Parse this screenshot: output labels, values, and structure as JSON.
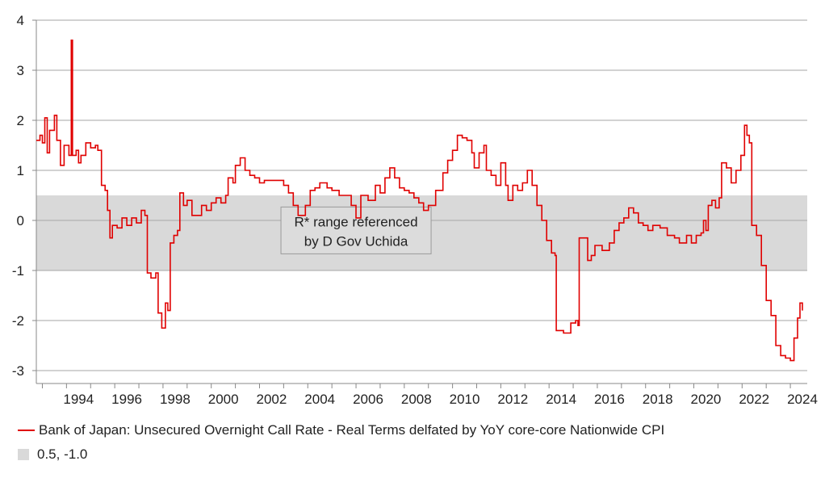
{
  "chart_data": {
    "type": "line",
    "ylim": [
      -3.25,
      4.0
    ],
    "yticks": [
      4,
      3,
      2,
      1,
      0,
      -1,
      -2,
      -3
    ],
    "xlim": [
      1992.75,
      2024.7
    ],
    "xticks": [
      "1994",
      "1996",
      "1998",
      "2000",
      "2002",
      "2004",
      "2006",
      "2008",
      "2010",
      "2012",
      "2014",
      "2016",
      "2018",
      "2020",
      "2022",
      "2024"
    ],
    "grid": true,
    "band": {
      "upper": 0.5,
      "lower": -1.0,
      "color": "#d9d9d9"
    },
    "annotation": {
      "line1": "R* range referenced",
      "line2": "by D Gov Uchida",
      "x": 2006.0,
      "y": -0.2
    },
    "legend": {
      "series_label": "Bank of Japan: Unsecured Overnight Call Rate - Real Terms delfated by YoY core-core Nationwide CPI",
      "band_label": "0.5, -1.0"
    },
    "series": [
      {
        "name": "Bank of Japan: Unsecured Overnight Call Rate - Real Terms delfated by YoY core-core Nationwide CPI",
        "color": "#e00000",
        "points": [
          [
            1992.75,
            1.6
          ],
          [
            1992.9,
            1.7
          ],
          [
            1993.0,
            1.55
          ],
          [
            1993.1,
            2.05
          ],
          [
            1993.2,
            1.35
          ],
          [
            1993.3,
            1.8
          ],
          [
            1993.5,
            2.1
          ],
          [
            1993.6,
            1.6
          ],
          [
            1993.75,
            1.1
          ],
          [
            1993.9,
            1.5
          ],
          [
            1994.1,
            1.3
          ],
          [
            1994.2,
            3.6
          ],
          [
            1994.25,
            1.3
          ],
          [
            1994.4,
            1.4
          ],
          [
            1994.5,
            1.15
          ],
          [
            1994.6,
            1.3
          ],
          [
            1994.8,
            1.55
          ],
          [
            1995.0,
            1.45
          ],
          [
            1995.2,
            1.5
          ],
          [
            1995.3,
            1.4
          ],
          [
            1995.45,
            0.7
          ],
          [
            1995.6,
            0.6
          ],
          [
            1995.7,
            0.2
          ],
          [
            1995.8,
            -0.35
          ],
          [
            1995.9,
            -0.1
          ],
          [
            1996.1,
            -0.15
          ],
          [
            1996.3,
            0.05
          ],
          [
            1996.5,
            -0.1
          ],
          [
            1996.7,
            0.05
          ],
          [
            1996.9,
            -0.05
          ],
          [
            1997.1,
            0.2
          ],
          [
            1997.25,
            0.1
          ],
          [
            1997.35,
            -1.05
          ],
          [
            1997.5,
            -1.15
          ],
          [
            1997.7,
            -1.05
          ],
          [
            1997.8,
            -1.85
          ],
          [
            1997.95,
            -2.15
          ],
          [
            1998.1,
            -1.65
          ],
          [
            1998.2,
            -1.8
          ],
          [
            1998.3,
            -0.45
          ],
          [
            1998.45,
            -0.3
          ],
          [
            1998.6,
            -0.2
          ],
          [
            1998.7,
            0.55
          ],
          [
            1998.85,
            0.3
          ],
          [
            1999.0,
            0.4
          ],
          [
            1999.2,
            0.1
          ],
          [
            1999.4,
            0.1
          ],
          [
            1999.6,
            0.3
          ],
          [
            1999.8,
            0.2
          ],
          [
            2000.0,
            0.35
          ],
          [
            2000.2,
            0.45
          ],
          [
            2000.4,
            0.35
          ],
          [
            2000.6,
            0.5
          ],
          [
            2000.7,
            0.85
          ],
          [
            2000.9,
            0.75
          ],
          [
            2001.0,
            1.1
          ],
          [
            2001.2,
            1.25
          ],
          [
            2001.4,
            1.0
          ],
          [
            2001.6,
            0.9
          ],
          [
            2001.8,
            0.85
          ],
          [
            2002.0,
            0.75
          ],
          [
            2002.2,
            0.8
          ],
          [
            2002.5,
            0.8
          ],
          [
            2002.8,
            0.8
          ],
          [
            2003.0,
            0.7
          ],
          [
            2003.2,
            0.55
          ],
          [
            2003.4,
            0.3
          ],
          [
            2003.6,
            0.1
          ],
          [
            2003.9,
            0.3
          ],
          [
            2004.1,
            0.6
          ],
          [
            2004.3,
            0.65
          ],
          [
            2004.5,
            0.75
          ],
          [
            2004.8,
            0.65
          ],
          [
            2005.0,
            0.6
          ],
          [
            2005.3,
            0.5
          ],
          [
            2005.6,
            0.5
          ],
          [
            2005.8,
            0.3
          ],
          [
            2006.0,
            0.05
          ],
          [
            2006.2,
            0.5
          ],
          [
            2006.5,
            0.4
          ],
          [
            2006.8,
            0.7
          ],
          [
            2007.0,
            0.55
          ],
          [
            2007.2,
            0.85
          ],
          [
            2007.4,
            1.05
          ],
          [
            2007.6,
            0.85
          ],
          [
            2007.8,
            0.65
          ],
          [
            2008.0,
            0.6
          ],
          [
            2008.2,
            0.55
          ],
          [
            2008.4,
            0.45
          ],
          [
            2008.6,
            0.35
          ],
          [
            2008.8,
            0.2
          ],
          [
            2009.0,
            0.3
          ],
          [
            2009.3,
            0.6
          ],
          [
            2009.6,
            0.95
          ],
          [
            2009.8,
            1.2
          ],
          [
            2010.0,
            1.4
          ],
          [
            2010.2,
            1.7
          ],
          [
            2010.4,
            1.65
          ],
          [
            2010.6,
            1.6
          ],
          [
            2010.8,
            1.35
          ],
          [
            2010.9,
            1.05
          ],
          [
            2011.1,
            1.35
          ],
          [
            2011.3,
            1.5
          ],
          [
            2011.4,
            1.0
          ],
          [
            2011.6,
            0.9
          ],
          [
            2011.8,
            0.7
          ],
          [
            2012.0,
            1.15
          ],
          [
            2012.2,
            0.7
          ],
          [
            2012.3,
            0.4
          ],
          [
            2012.5,
            0.7
          ],
          [
            2012.7,
            0.6
          ],
          [
            2012.9,
            0.75
          ],
          [
            2013.1,
            1.0
          ],
          [
            2013.3,
            0.7
          ],
          [
            2013.5,
            0.3
          ],
          [
            2013.7,
            0.0
          ],
          [
            2013.9,
            -0.4
          ],
          [
            2014.1,
            -0.65
          ],
          [
            2014.25,
            -0.7
          ],
          [
            2014.3,
            -2.2
          ],
          [
            2014.6,
            -2.25
          ],
          [
            2014.9,
            -2.05
          ],
          [
            2015.1,
            -2.0
          ],
          [
            2015.2,
            -2.1
          ],
          [
            2015.25,
            -0.35
          ],
          [
            2015.45,
            -0.35
          ],
          [
            2015.6,
            -0.8
          ],
          [
            2015.75,
            -0.7
          ],
          [
            2015.9,
            -0.5
          ],
          [
            2016.2,
            -0.6
          ],
          [
            2016.5,
            -0.45
          ],
          [
            2016.7,
            -0.2
          ],
          [
            2016.9,
            -0.05
          ],
          [
            2017.1,
            0.05
          ],
          [
            2017.3,
            0.25
          ],
          [
            2017.5,
            0.15
          ],
          [
            2017.7,
            -0.05
          ],
          [
            2017.9,
            -0.1
          ],
          [
            2018.1,
            -0.2
          ],
          [
            2018.3,
            -0.1
          ],
          [
            2018.6,
            -0.15
          ],
          [
            2018.9,
            -0.3
          ],
          [
            2019.2,
            -0.35
          ],
          [
            2019.4,
            -0.45
          ],
          [
            2019.7,
            -0.3
          ],
          [
            2019.9,
            -0.45
          ],
          [
            2020.1,
            -0.3
          ],
          [
            2020.3,
            -0.25
          ],
          [
            2020.4,
            0.0
          ],
          [
            2020.5,
            -0.2
          ],
          [
            2020.6,
            0.3
          ],
          [
            2020.75,
            0.4
          ],
          [
            2020.9,
            0.25
          ],
          [
            2021.05,
            0.45
          ],
          [
            2021.15,
            1.15
          ],
          [
            2021.35,
            1.05
          ],
          [
            2021.55,
            0.75
          ],
          [
            2021.75,
            1.0
          ],
          [
            2021.95,
            1.3
          ],
          [
            2022.1,
            1.9
          ],
          [
            2022.2,
            1.7
          ],
          [
            2022.3,
            1.55
          ],
          [
            2022.4,
            -0.1
          ],
          [
            2022.6,
            -0.3
          ],
          [
            2022.8,
            -0.9
          ],
          [
            2023.0,
            -1.6
          ],
          [
            2023.2,
            -1.9
          ],
          [
            2023.4,
            -2.5
          ],
          [
            2023.6,
            -2.7
          ],
          [
            2023.8,
            -2.75
          ],
          [
            2024.0,
            -2.8
          ],
          [
            2024.15,
            -2.35
          ],
          [
            2024.3,
            -1.95
          ],
          [
            2024.4,
            -1.65
          ],
          [
            2024.5,
            -1.8
          ]
        ]
      }
    ]
  }
}
